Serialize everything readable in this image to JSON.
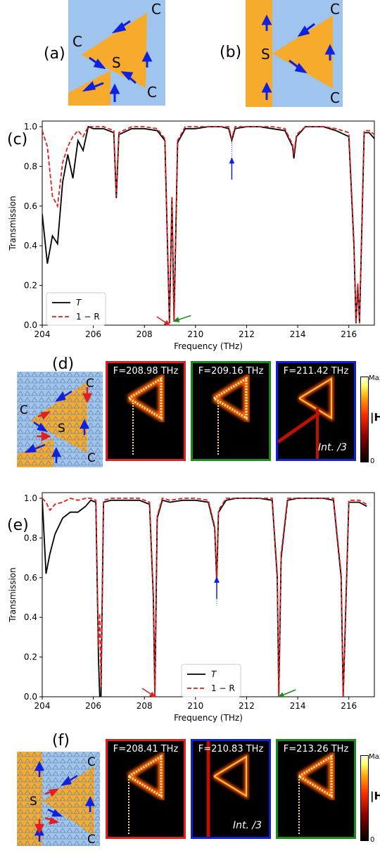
{
  "panels": {
    "a": "(a)",
    "b": "(b)",
    "c": "(c)",
    "d": "(d)",
    "e": "(e)",
    "f": "(f)"
  },
  "schematic": {
    "sensor": "S",
    "coupler": "C"
  },
  "colors": {
    "blue_bg": "#9fc5ef",
    "orange": "#f7ab2c",
    "arrow_blue": "#1020e0",
    "arrow_red": "#e02020",
    "green": "#1a8a1a",
    "T": "#000000",
    "one_minus_R": "#e02020"
  },
  "chart_data": [
    {
      "type": "line",
      "panel": "c",
      "xlabel": "Frequency (THz)",
      "ylabel": "Transmission",
      "xlim": [
        204,
        217
      ],
      "ylim": [
        0,
        1.0
      ],
      "xticks": [
        "204",
        "206",
        "208",
        "210",
        "212",
        "214",
        "216"
      ],
      "yticks": [
        "0.0",
        "0.2",
        "0.4",
        "0.6",
        "0.8",
        "1.0"
      ],
      "legend": {
        "position": "bottom-left",
        "entries": [
          "T",
          "1 − R"
        ]
      },
      "series": [
        {
          "name": "T",
          "style": "solid",
          "x": [
            204.0,
            204.2,
            204.4,
            204.6,
            204.8,
            205.0,
            205.2,
            205.4,
            205.6,
            205.8,
            206.0,
            206.4,
            206.8,
            206.9,
            207.0,
            207.5,
            208.0,
            208.5,
            208.8,
            208.98,
            209.08,
            209.16,
            209.3,
            209.6,
            210.0,
            210.5,
            211.0,
            211.3,
            211.42,
            211.55,
            212.0,
            212.5,
            213.0,
            213.5,
            213.8,
            213.85,
            213.95,
            214.3,
            215.0,
            215.5,
            216.0,
            216.2,
            216.28,
            216.35,
            216.42,
            216.6,
            216.8,
            217.0
          ],
          "y": [
            0.56,
            0.31,
            0.45,
            0.41,
            0.72,
            0.86,
            0.74,
            0.93,
            0.88,
            1.0,
            0.99,
            0.99,
            0.97,
            0.64,
            0.96,
            0.99,
            0.99,
            0.98,
            0.93,
            0.01,
            0.64,
            0.02,
            0.92,
            0.99,
            0.99,
            1.0,
            1.0,
            0.99,
            0.93,
            0.99,
            1.0,
            1.0,
            0.99,
            0.98,
            0.9,
            0.84,
            0.95,
            1.0,
            1.0,
            0.98,
            0.95,
            0.4,
            0.01,
            0.2,
            0.01,
            0.97,
            0.97,
            0.94
          ]
        },
        {
          "name": "1 − R",
          "style": "dashed",
          "x": [
            204.0,
            204.2,
            204.4,
            204.6,
            204.8,
            205.0,
            205.2,
            205.4,
            205.6,
            205.8,
            206.0,
            206.4,
            206.8,
            206.9,
            207.0,
            207.5,
            208.0,
            208.5,
            208.8,
            208.98,
            209.08,
            209.16,
            209.3,
            209.6,
            210.0,
            210.5,
            211.0,
            211.3,
            211.42,
            211.55,
            212.0,
            212.5,
            213.0,
            213.5,
            213.8,
            213.85,
            213.95,
            214.3,
            215.0,
            215.5,
            216.0,
            216.2,
            216.28,
            216.35,
            216.42,
            216.6,
            216.8,
            217.0
          ],
          "y": [
            0.98,
            0.9,
            0.65,
            0.6,
            0.82,
            0.9,
            0.95,
            0.98,
            0.95,
            1.0,
            1.0,
            1.0,
            0.98,
            0.65,
            0.97,
            1.0,
            1.0,
            0.99,
            0.94,
            0.01,
            0.65,
            0.02,
            0.93,
            1.0,
            1.0,
            1.0,
            1.0,
            1.0,
            0.94,
            1.0,
            1.0,
            1.0,
            1.0,
            0.99,
            0.91,
            0.86,
            0.96,
            1.0,
            1.0,
            0.99,
            0.97,
            0.42,
            0.01,
            0.21,
            0.01,
            0.98,
            0.98,
            0.96
          ]
        }
      ]
    },
    {
      "type": "line",
      "panel": "e",
      "xlabel": "Frequency (THz)",
      "ylabel": "Transmission",
      "xlim": [
        204,
        217
      ],
      "ylim": [
        0,
        1.0
      ],
      "xticks": [
        "204",
        "206",
        "208",
        "210",
        "212",
        "214",
        "216"
      ],
      "yticks": [
        "0.0",
        "0.2",
        "0.4",
        "0.6",
        "0.8",
        "1.0"
      ],
      "legend": {
        "position": "bottom-center",
        "entries": [
          "T",
          "1 − R"
        ]
      },
      "series": [
        {
          "name": "T",
          "style": "solid",
          "x": [
            204.0,
            204.15,
            204.3,
            204.5,
            204.8,
            205.1,
            205.4,
            205.7,
            205.9,
            206.1,
            206.2,
            206.25,
            206.3,
            206.4,
            206.7,
            207.2,
            207.8,
            208.2,
            208.35,
            208.41,
            208.5,
            208.7,
            209.0,
            209.5,
            210.0,
            210.5,
            210.75,
            210.83,
            210.9,
            211.2,
            211.6,
            212.0,
            212.5,
            213.0,
            213.2,
            213.26,
            213.35,
            213.6,
            214.0,
            214.5,
            215.0,
            215.4,
            215.7,
            215.78,
            215.85,
            216.0,
            216.4,
            216.7
          ],
          "y": [
            1.0,
            0.62,
            0.72,
            0.82,
            0.9,
            0.93,
            0.93,
            0.96,
            0.99,
            0.98,
            0.2,
            0.0,
            0.0,
            0.98,
            0.99,
            0.99,
            0.99,
            0.97,
            0.5,
            0.0,
            0.9,
            0.99,
            0.98,
            0.99,
            0.99,
            0.98,
            0.85,
            0.58,
            0.93,
            0.99,
            1.0,
            1.0,
            1.0,
            0.99,
            0.6,
            0.0,
            0.7,
            0.99,
            1.0,
            1.0,
            1.0,
            0.99,
            0.6,
            0.0,
            0.3,
            0.98,
            0.98,
            0.96
          ]
        },
        {
          "name": "1 − R",
          "style": "dashed",
          "x": [
            204.0,
            204.15,
            204.3,
            204.5,
            204.8,
            205.1,
            205.4,
            205.7,
            205.9,
            206.1,
            206.2,
            206.25,
            206.3,
            206.4,
            206.7,
            207.2,
            207.8,
            208.2,
            208.35,
            208.41,
            208.5,
            208.7,
            209.0,
            209.5,
            210.0,
            210.5,
            210.75,
            210.83,
            210.9,
            211.2,
            211.6,
            212.0,
            212.5,
            213.0,
            213.2,
            213.26,
            213.35,
            213.6,
            214.0,
            214.5,
            215.0,
            215.4,
            215.7,
            215.78,
            215.85,
            216.0,
            216.4,
            216.7
          ],
          "y": [
            1.0,
            0.98,
            0.94,
            0.97,
            0.98,
            1.0,
            0.99,
            1.0,
            1.0,
            0.99,
            0.25,
            0.42,
            0.05,
            0.99,
            1.0,
            1.0,
            1.0,
            0.98,
            0.52,
            0.0,
            0.91,
            1.0,
            0.99,
            1.0,
            1.0,
            0.99,
            0.86,
            0.6,
            0.94,
            1.0,
            1.0,
            1.0,
            1.0,
            1.0,
            0.62,
            0.0,
            0.72,
            1.0,
            1.0,
            1.0,
            1.0,
            1.0,
            0.62,
            0.0,
            0.32,
            0.99,
            0.99,
            0.97
          ]
        }
      ]
    }
  ],
  "field_maps_d": [
    {
      "label": "F=208.98 THz",
      "border": "#e02020",
      "note": ""
    },
    {
      "label": "F=209.16 THz",
      "border": "#1a8a1a",
      "note": ""
    },
    {
      "label": "F=211.42 THz",
      "border": "#1020e0",
      "note": "Int. /3"
    }
  ],
  "field_maps_f": [
    {
      "label": "F=208.41 THz",
      "border": "#e02020",
      "note": ""
    },
    {
      "label": "F=210.83 THz",
      "border": "#1020e0",
      "note": "Int. /3"
    },
    {
      "label": "F=213.26 THz",
      "border": "#1a8a1a",
      "note": ""
    }
  ],
  "colorbar": {
    "max": "Max",
    "min": "0",
    "quantity": "|H"
  }
}
